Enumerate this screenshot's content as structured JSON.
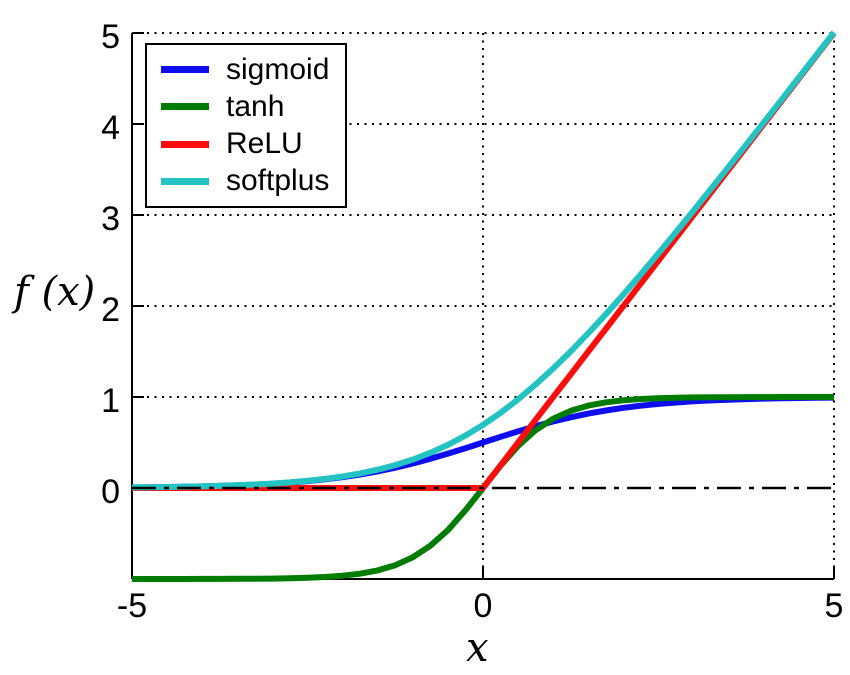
{
  "figure": {
    "background": "#ffffff",
    "axis_color": "#000000",
    "grid_color": "#000000"
  },
  "chart_data": {
    "type": "line",
    "title": "",
    "xlabel": "x",
    "ylabel": "f (x)",
    "xlim": [
      -5,
      5
    ],
    "ylim": [
      -1,
      5
    ],
    "xticks": [
      -5,
      0,
      5
    ],
    "yticks": [
      0,
      1,
      2,
      3,
      4,
      5
    ],
    "grid": {
      "horizontal_dotted_at": [
        1,
        2,
        3,
        4,
        5
      ],
      "vertical_dotted_at": [
        0,
        5
      ],
      "zero_dashdot_line_at": 0,
      "style": "dotted"
    },
    "legend": {
      "position": "top-left",
      "entries": [
        {
          "label": "sigmoid",
          "color": "#0d0dee"
        },
        {
          "label": "tanh",
          "color": "#007c00"
        },
        {
          "label": "ReLU",
          "color": "#fd0d0c"
        },
        {
          "label": "softplus",
          "color": "#23c3c3"
        }
      ]
    },
    "x": [
      -5,
      -4.75,
      -4.5,
      -4.25,
      -4,
      -3.75,
      -3.5,
      -3.25,
      -3,
      -2.75,
      -2.5,
      -2.25,
      -2,
      -1.75,
      -1.5,
      -1.25,
      -1,
      -0.75,
      -0.5,
      -0.25,
      0,
      0.25,
      0.5,
      0.75,
      1,
      1.25,
      1.5,
      1.75,
      2,
      2.25,
      2.5,
      2.75,
      3,
      3.25,
      3.5,
      3.75,
      4,
      4.25,
      4.5,
      4.75,
      5
    ],
    "series": [
      {
        "name": "sigmoid",
        "color": "#0d0dee",
        "values": [
          0.0067,
          0.0086,
          0.011,
          0.0141,
          0.018,
          0.0229,
          0.0293,
          0.0374,
          0.0474,
          0.0601,
          0.0759,
          0.0953,
          0.1192,
          0.148,
          0.1824,
          0.2227,
          0.2689,
          0.3208,
          0.3775,
          0.4378,
          0.5,
          0.5622,
          0.6225,
          0.6792,
          0.7311,
          0.7773,
          0.8176,
          0.852,
          0.8808,
          0.9047,
          0.9241,
          0.9399,
          0.9526,
          0.9626,
          0.9707,
          0.9771,
          0.982,
          0.9859,
          0.989,
          0.9914,
          0.9933
        ]
      },
      {
        "name": "tanh",
        "color": "#007c00",
        "values": [
          -0.9999,
          -0.9999,
          -0.9998,
          -0.9996,
          -0.9993,
          -0.9989,
          -0.9982,
          -0.997,
          -0.9951,
          -0.9919,
          -0.9866,
          -0.978,
          -0.964,
          -0.9414,
          -0.9051,
          -0.8483,
          -0.7616,
          -0.6351,
          -0.4621,
          -0.2449,
          0,
          0.2449,
          0.4621,
          0.6351,
          0.7616,
          0.8483,
          0.9051,
          0.9414,
          0.964,
          0.978,
          0.9866,
          0.9919,
          0.9951,
          0.997,
          0.9982,
          0.9989,
          0.9993,
          0.9996,
          0.9998,
          0.9999,
          0.9999
        ]
      },
      {
        "name": "ReLU",
        "color": "#fd0d0c",
        "values": [
          0,
          0,
          0,
          0,
          0,
          0,
          0,
          0,
          0,
          0,
          0,
          0,
          0,
          0,
          0,
          0,
          0,
          0,
          0,
          0,
          0,
          0.25,
          0.5,
          0.75,
          1,
          1.25,
          1.5,
          1.75,
          2,
          2.25,
          2.5,
          2.75,
          3,
          3.25,
          3.5,
          3.75,
          4,
          4.25,
          4.5,
          4.75,
          5
        ]
      },
      {
        "name": "softplus",
        "color": "#23c3c3",
        "values": [
          0.0067,
          0.0086,
          0.0111,
          0.0142,
          0.0181,
          0.0232,
          0.0297,
          0.0381,
          0.0486,
          0.062,
          0.0789,
          0.1002,
          0.1269,
          0.1602,
          0.2014,
          0.252,
          0.3133,
          0.3869,
          0.4741,
          0.576,
          0.6931,
          0.826,
          0.9741,
          1.137,
          1.3133,
          1.502,
          1.7014,
          1.9102,
          2.1269,
          2.3502,
          2.5789,
          2.812,
          3.0486,
          3.2881,
          3.5297,
          3.7732,
          4.0181,
          4.2642,
          4.5111,
          4.7585,
          5.0067
        ]
      }
    ]
  }
}
